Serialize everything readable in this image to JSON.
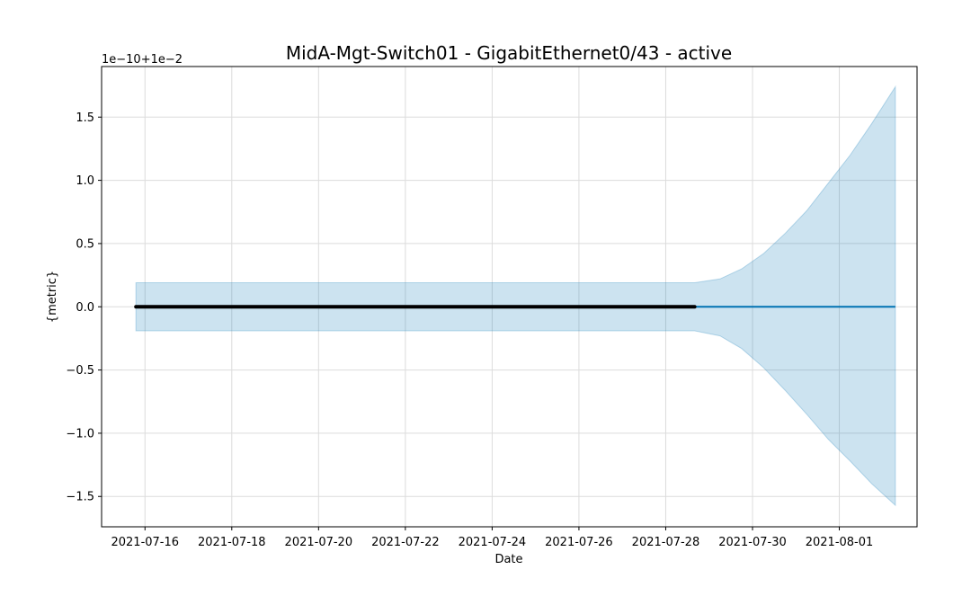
{
  "chart_data": {
    "type": "line",
    "title": "MidA-Mgt-Switch01 - GigabitEthernet0/43 - active",
    "xlabel": "Date",
    "ylabel": "{metric}",
    "offset_label": "1e−10+1e−2",
    "x_ticks": [
      "2021-07-16",
      "2021-07-18",
      "2021-07-20",
      "2021-07-22",
      "2021-07-24",
      "2021-07-26",
      "2021-07-28",
      "2021-07-30",
      "2021-08-01"
    ],
    "y_ticks": [
      "−1.5",
      "−1.0",
      "−0.5",
      "0.0",
      "0.5",
      "1.0",
      "1.5"
    ],
    "y_tick_values": [
      -1.5,
      -1.0,
      -0.5,
      0.0,
      0.5,
      1.0,
      1.5
    ],
    "xlim": [
      "2021-07-15 00:00",
      "2021-08-02 19:00"
    ],
    "ylim": [
      -1.74,
      1.9
    ],
    "grid": true,
    "series": [
      {
        "kind": "observed",
        "color": "#000000",
        "x_start": "2021-07-15 19:00",
        "x_end": "2021-07-28 16:00",
        "values": [
          0.0,
          0.0
        ]
      },
      {
        "kind": "forecast",
        "color": "#0072B2",
        "x_start": "2021-07-15 19:00",
        "x_end": "2021-08-02 07:00",
        "values": [
          0.0,
          0.0
        ]
      }
    ],
    "interval": {
      "color": "#0072B2",
      "opacity": 0.2,
      "upper": [
        [
          "2021-07-15 19:00",
          0.19
        ],
        [
          "2021-07-20 00:00",
          0.19
        ],
        [
          "2021-07-24 00:00",
          0.19
        ],
        [
          "2021-07-28 16:00",
          0.19
        ],
        [
          "2021-07-29 06:00",
          0.22
        ],
        [
          "2021-07-29 18:00",
          0.3
        ],
        [
          "2021-07-30 06:00",
          0.42
        ],
        [
          "2021-07-30 18:00",
          0.58
        ],
        [
          "2021-07-31 06:00",
          0.76
        ],
        [
          "2021-07-31 18:00",
          0.98
        ],
        [
          "2021-08-01 06:00",
          1.2
        ],
        [
          "2021-08-01 18:00",
          1.45
        ],
        [
          "2021-08-02 07:00",
          1.74
        ]
      ],
      "lower": [
        [
          "2021-07-15 19:00",
          -0.19
        ],
        [
          "2021-07-20 00:00",
          -0.19
        ],
        [
          "2021-07-24 00:00",
          -0.19
        ],
        [
          "2021-07-28 16:00",
          -0.19
        ],
        [
          "2021-07-29 06:00",
          -0.23
        ],
        [
          "2021-07-29 18:00",
          -0.33
        ],
        [
          "2021-07-30 06:00",
          -0.48
        ],
        [
          "2021-07-30 18:00",
          -0.66
        ],
        [
          "2021-07-31 06:00",
          -0.85
        ],
        [
          "2021-07-31 18:00",
          -1.05
        ],
        [
          "2021-08-01 06:00",
          -1.22
        ],
        [
          "2021-08-01 18:00",
          -1.4
        ],
        [
          "2021-08-02 07:00",
          -1.57
        ]
      ]
    }
  }
}
